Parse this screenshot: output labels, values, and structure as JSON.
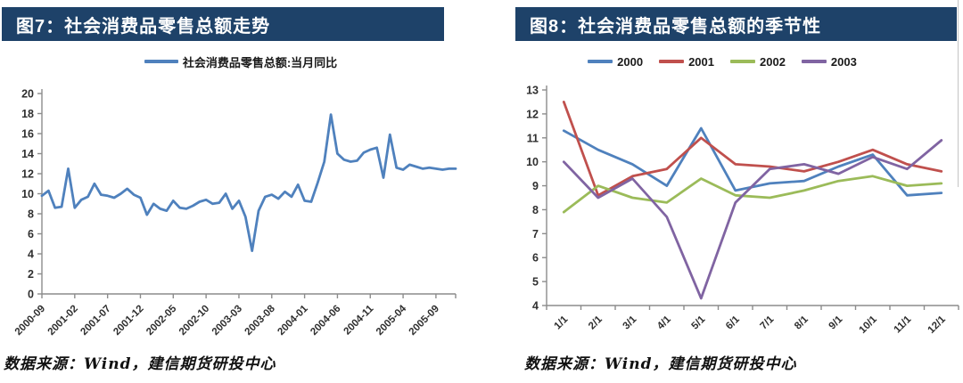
{
  "theme": {
    "header_bg": "#1e4269",
    "header_text_color": "#ffffff",
    "axis_color": "#8c8c8c",
    "tick_label_color": "#2f2f2f",
    "series_blue": "#4F81BD",
    "series_red": "#C0504D",
    "series_green": "#9BBB59",
    "series_purple": "#8064A2"
  },
  "left_panel": {
    "title": "图7：社会消费品零售总额走势",
    "source_note": "数据来源：Wind，建信期货研投中心"
  },
  "right_panel": {
    "title": "图8：社会消费品零售总额的季节性",
    "source_note": "数据来源：Wind，建信期货研投中心"
  },
  "chart_data": [
    {
      "type": "line",
      "panel": "left",
      "title": "图7：社会消费品零售总额走势",
      "legend_position": "top",
      "grid": false,
      "ylim": [
        0,
        20
      ],
      "ytick_step": 2,
      "x_freq": "monthly",
      "x_start": "2000-09",
      "x_end": "2005-12",
      "x_tick_every": 5,
      "x_tick_labels": [
        "2000-09",
        "2001-02",
        "2001-07",
        "2001-12",
        "2002-05",
        "2002-10",
        "2003-03",
        "2003-08",
        "2004-01",
        "2004-06",
        "2004-11",
        "2005-04",
        "2005-09"
      ],
      "series": [
        {
          "name": "社会消费品零售总额:当月同比",
          "color": "#4F81BD",
          "values": [
            9.8,
            10.3,
            8.6,
            8.7,
            12.5,
            8.6,
            9.4,
            9.7,
            11.0,
            9.9,
            9.8,
            9.6,
            10.0,
            10.5,
            9.9,
            9.6,
            7.9,
            9.0,
            8.5,
            8.3,
            9.3,
            8.6,
            8.5,
            8.8,
            9.2,
            9.4,
            9.0,
            9.1,
            10.0,
            8.5,
            9.3,
            7.7,
            4.3,
            8.3,
            9.7,
            9.9,
            9.5,
            10.2,
            9.7,
            10.9,
            9.3,
            9.2,
            11.1,
            13.2,
            17.9,
            14.0,
            13.4,
            13.2,
            13.3,
            14.1,
            14.4,
            14.6,
            11.6,
            15.9,
            12.6,
            12.4,
            12.9,
            12.7,
            12.5,
            12.6,
            12.5,
            12.4,
            12.5,
            12.5
          ]
        }
      ]
    },
    {
      "type": "line",
      "panel": "right",
      "title": "图8：社会消费品零售总额的季节性",
      "legend_position": "top",
      "grid": false,
      "ylim": [
        4,
        13
      ],
      "ytick_step": 1,
      "categories": [
        "1/1",
        "2/1",
        "3/1",
        "4/1",
        "5/1",
        "6/1",
        "7/1",
        "8/1",
        "9/1",
        "10/1",
        "11/1",
        "12/1"
      ],
      "series": [
        {
          "name": "2000",
          "color": "#4F81BD",
          "values": [
            11.3,
            10.5,
            9.9,
            9.0,
            11.4,
            8.8,
            9.1,
            9.2,
            9.8,
            10.3,
            8.6,
            8.7
          ]
        },
        {
          "name": "2001",
          "color": "#C0504D",
          "values": [
            12.5,
            8.6,
            9.4,
            9.7,
            11.0,
            9.9,
            9.8,
            9.6,
            10.0,
            10.5,
            9.9,
            9.6
          ]
        },
        {
          "name": "2002",
          "color": "#9BBB59",
          "values": [
            7.9,
            9.0,
            8.5,
            8.3,
            9.3,
            8.6,
            8.5,
            8.8,
            9.2,
            9.4,
            9.0,
            9.1
          ]
        },
        {
          "name": "2003",
          "color": "#8064A2",
          "values": [
            10.0,
            8.5,
            9.3,
            7.7,
            4.3,
            8.3,
            9.7,
            9.9,
            9.5,
            10.2,
            9.7,
            10.9
          ]
        }
      ]
    }
  ]
}
